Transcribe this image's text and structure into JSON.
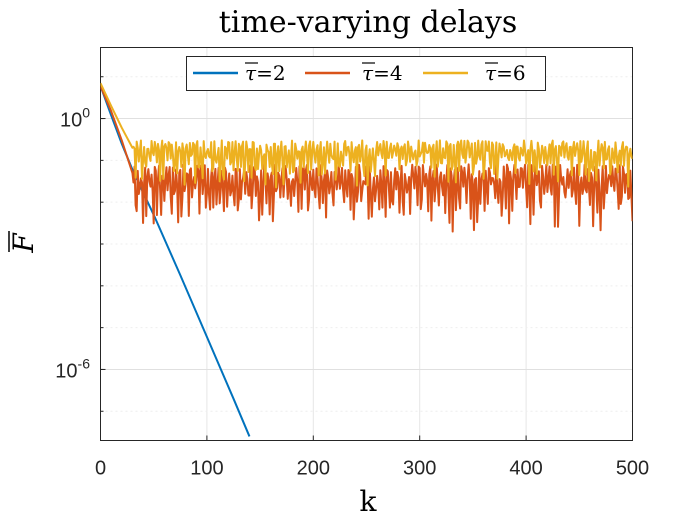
{
  "chart_data": {
    "type": "line",
    "title": "time-varying delays",
    "xlabel": "k",
    "ylabel": "F",
    "y_scale": "log",
    "xlim": [
      0,
      500
    ],
    "ylim": [
      2e-08,
      50
    ],
    "grid": true,
    "legend_placement": "top",
    "x_ticks": [
      0,
      100,
      200,
      300,
      400,
      500
    ],
    "x_tick_labels": [
      "0",
      "100",
      "200",
      "300",
      "400",
      "500"
    ],
    "y_ticks": [
      1,
      1e-06
    ],
    "y_tick_labels": [
      {
        "base": "10",
        "exp": "0"
      },
      {
        "base": "10",
        "exp": "-6"
      }
    ],
    "series": [
      {
        "name": "τ =2",
        "legend_parts": {
          "symbol": "τ",
          "eq": "=2"
        },
        "color": "#0072BD",
        "behavior": "exponential decay",
        "x": [
          0,
          10,
          20,
          30,
          50,
          75,
          100,
          125,
          140
        ],
        "y": [
          6,
          1.2,
          0.25,
          0.06,
          0.005,
          0.00018,
          6e-06,
          2e-07,
          2.5e-08
        ]
      },
      {
        "name": "τ =4",
        "legend_parts": {
          "symbol": "τ",
          "eq": "=4"
        },
        "color": "#D95319",
        "behavior": "oscillating plateau",
        "x": [
          0,
          10,
          20,
          30,
          500
        ],
        "y": [
          6,
          1.5,
          0.3,
          0.05,
          0.05
        ],
        "plateau_range": [
          0.0018,
          0.08
        ]
      },
      {
        "name": "τ =6",
        "legend_parts": {
          "symbol": "τ",
          "eq": "=6"
        },
        "color": "#EDB120",
        "behavior": "oscillating plateau",
        "x": [
          0,
          10,
          20,
          30,
          500
        ],
        "y": [
          7,
          2.0,
          0.6,
          0.2,
          0.2
        ],
        "plateau_range": [
          0.02,
          0.3
        ]
      }
    ]
  }
}
